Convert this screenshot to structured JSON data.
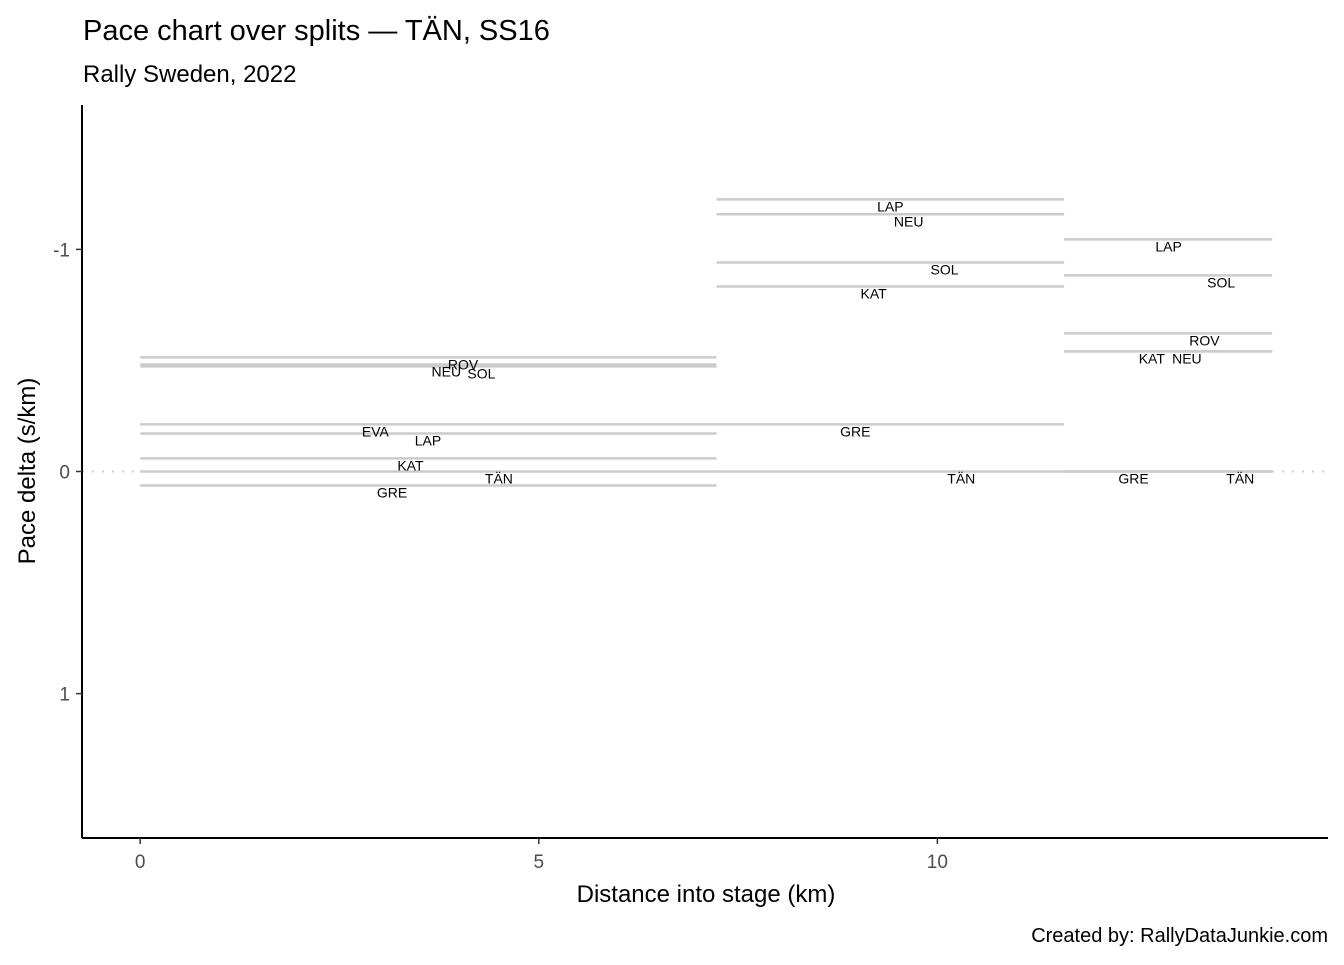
{
  "chart_data": {
    "type": "line",
    "title": "Pace chart over splits — TÄN, SS16",
    "subtitle": "Rally Sweden, 2022",
    "xlabel": "Distance into stage (km)",
    "ylabel": "Pace delta (s/km)",
    "caption": "Created by: RallyDataJunkie.com",
    "xlim": [
      -0.73,
      14.9
    ],
    "ylim": [
      -1.65,
      1.65
    ],
    "y_reversed": true,
    "x_ticks": [
      0,
      5,
      10
    ],
    "x_tick_labels": [
      "0",
      "5",
      "10"
    ],
    "y_ticks": [
      -1,
      0,
      1
    ],
    "y_tick_labels": [
      "-1",
      "0",
      "1"
    ],
    "reference_line": 0,
    "grid": false,
    "splits": [
      {
        "start": 0,
        "end": 7.23,
        "series": [
          {
            "name": "ROV",
            "value": -0.514,
            "label_x": 4.05
          },
          {
            "name": "NEU",
            "value": -0.482,
            "label_x": 3.84
          },
          {
            "name": "SOL",
            "value": -0.473,
            "label_x": 4.28
          },
          {
            "name": "EVA",
            "value": -0.212,
            "label_x": 2.95
          },
          {
            "name": "LAP",
            "value": -0.171,
            "label_x": 3.61
          },
          {
            "name": "KAT",
            "value": -0.059,
            "label_x": 3.39
          },
          {
            "name": "TÄN",
            "value": 0,
            "label_x": 4.5
          },
          {
            "name": "GRE",
            "value": 0.063,
            "label_x": 3.16
          }
        ]
      },
      {
        "start": 7.23,
        "end": 11.59,
        "series": [
          {
            "name": "LAP",
            "value": -1.225,
            "label_x": 9.41
          },
          {
            "name": "NEU",
            "value": -1.158,
            "label_x": 9.64
          },
          {
            "name": "SOL",
            "value": -0.941,
            "label_x": 10.09
          },
          {
            "name": "KAT",
            "value": -0.833,
            "label_x": 9.2
          },
          {
            "name": "GRE",
            "value": -0.212,
            "label_x": 8.97
          },
          {
            "name": "TÄN",
            "value": 0,
            "label_x": 10.3
          }
        ]
      },
      {
        "start": 11.59,
        "end": 14.2,
        "series": [
          {
            "name": "LAP",
            "value": -1.045,
            "label_x": 12.9
          },
          {
            "name": "SOL",
            "value": -0.883,
            "label_x": 13.56
          },
          {
            "name": "ROV",
            "value": -0.622,
            "label_x": 13.35
          },
          {
            "name": "KAT",
            "value": -0.541,
            "label_x": 12.69
          },
          {
            "name": "NEU",
            "value": -0.541,
            "label_x": 13.13
          },
          {
            "name": "GRE",
            "value": 0,
            "label_x": 12.46
          },
          {
            "name": "TÄN",
            "value": 0,
            "label_x": 13.8
          }
        ]
      }
    ],
    "colors": {
      "segment": "#cccccc",
      "reference": "#d0d0d0",
      "axis": "#000000",
      "text": "#000000",
      "tick_text": "#4d4d4d"
    }
  }
}
